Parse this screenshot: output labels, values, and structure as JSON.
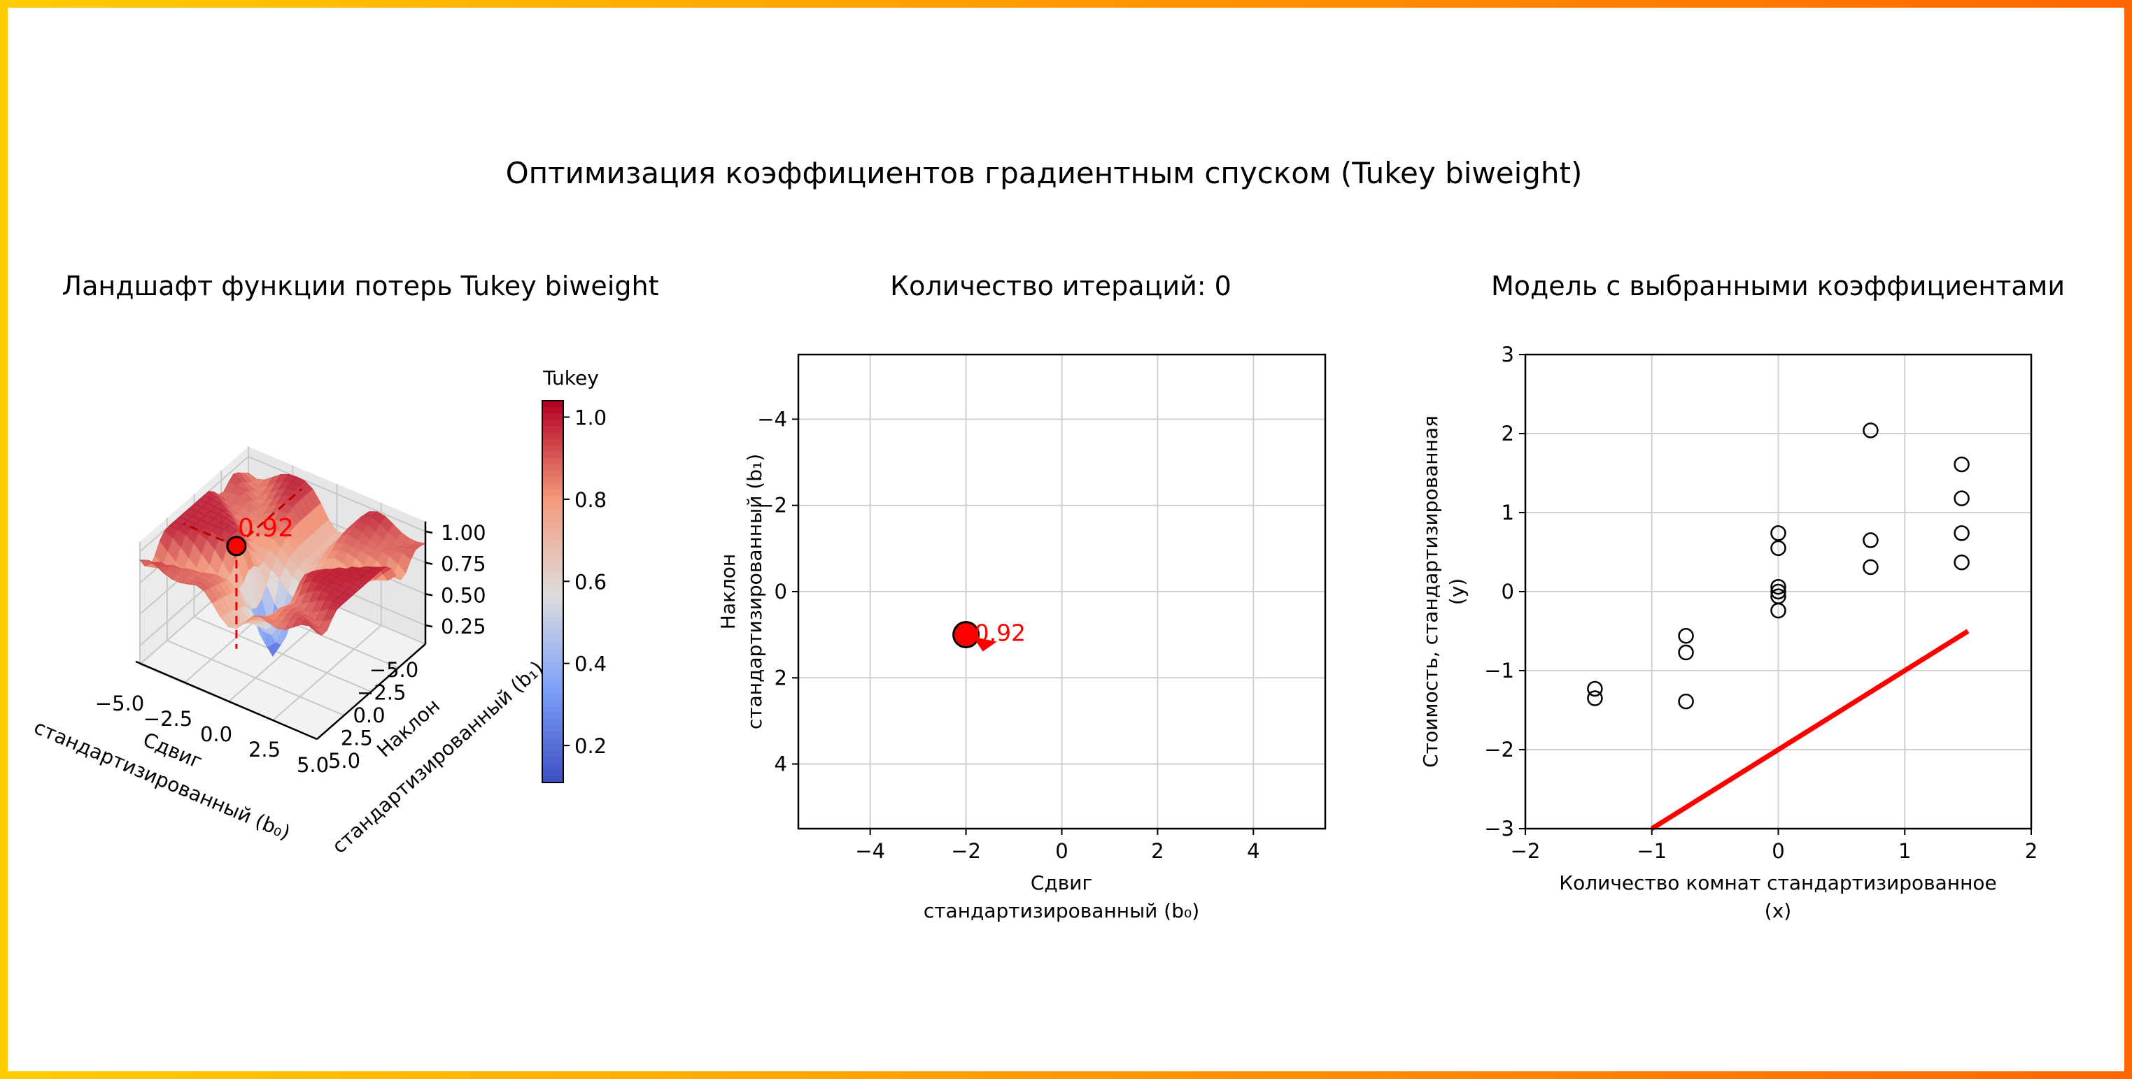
{
  "title": "Оптимизация коэффициентов градиентным спуском (Tukey biweight)",
  "colors": {
    "marker": "#ff0000",
    "marker_edge": "#000000",
    "line": "#ff0000",
    "colormap": "coolwarm",
    "border_left": "#ffcc00",
    "border_right": "#ff6600"
  },
  "chart_data": [
    {
      "type": "surface",
      "title": "Ландшафт функции потерь Tukey biweight",
      "xlabel_line1": "Сдвиг",
      "xlabel_line2": "стандартизированный (b₀)",
      "ylabel_line1": "Наклон",
      "ylabel_line2": "стандартизированный (b₁)",
      "xlim": [
        -5,
        5
      ],
      "ylim": [
        5,
        -5
      ],
      "xticks": [
        "−5.0",
        "−2.5",
        "0.0",
        "2.5",
        "5.0"
      ],
      "yticks": [
        "−5.0",
        "−2.5",
        "0.0",
        "2.5",
        "5.0"
      ],
      "zticks": [
        "0.25",
        "0.50",
        "0.75",
        "1.00"
      ],
      "colorbar": {
        "label": "Tukey",
        "range": [
          0.11,
          1.04
        ],
        "ticks": [
          "0.2",
          "0.4",
          "0.6",
          "0.8",
          "1.0"
        ]
      },
      "current_point": {
        "b0": -2,
        "b1": 1,
        "loss": 0.92,
        "label": "0.92"
      }
    },
    {
      "type": "scatter",
      "title": "Количество итераций: 0",
      "xlabel_line1": "Сдвиг",
      "xlabel_line2": "стандартизированный (b₀)",
      "ylabel_line1": "Наклон",
      "ylabel_line2": "стандартизированный (b₁)",
      "xlim": [
        -5.5,
        5.5
      ],
      "ylim": [
        5.5,
        -5.5
      ],
      "y_inverted": true,
      "grid": true,
      "xticks": [
        "−4",
        "−2",
        "0",
        "2",
        "4"
      ],
      "yticks": [
        "−4",
        "−2",
        "0",
        "2",
        "4"
      ],
      "points": [
        {
          "x": -2,
          "y": 1,
          "label": "0.92"
        }
      ]
    },
    {
      "type": "scatter",
      "title": "Модель с выбранными коэффициентами",
      "xlabel_line1": "Количество комнат стандартизированное",
      "xlabel_line2": "(x)",
      "ylabel_line1": "Стоимость, стандартизированная",
      "ylabel_line2": "(y)",
      "xlim": [
        -2,
        2
      ],
      "ylim": [
        -3,
        3
      ],
      "grid": true,
      "xticks": [
        "−2",
        "−1",
        "0",
        "1",
        "2"
      ],
      "yticks": [
        "−3",
        "−2",
        "−1",
        "0",
        "1",
        "2",
        "3"
      ],
      "points": [
        {
          "x": -1.45,
          "y": -1.23
        },
        {
          "x": -1.45,
          "y": -1.35
        },
        {
          "x": -0.73,
          "y": -0.56
        },
        {
          "x": -0.73,
          "y": -0.77
        },
        {
          "x": -0.73,
          "y": -1.39
        },
        {
          "x": 0,
          "y": 0.74
        },
        {
          "x": 0,
          "y": 0.55
        },
        {
          "x": 0,
          "y": 0.06
        },
        {
          "x": 0,
          "y": 0.0
        },
        {
          "x": 0,
          "y": -0.06
        },
        {
          "x": 0,
          "y": -0.24
        },
        {
          "x": 0.73,
          "y": 2.04
        },
        {
          "x": 0.73,
          "y": 0.65
        },
        {
          "x": 0.73,
          "y": 0.31
        },
        {
          "x": 1.45,
          "y": 1.61
        },
        {
          "x": 1.45,
          "y": 1.18
        },
        {
          "x": 1.45,
          "y": 0.74
        },
        {
          "x": 1.45,
          "y": 0.37
        }
      ],
      "line": {
        "intercept": -2,
        "slope": 1,
        "x_range": [
          -1,
          1.5
        ]
      }
    }
  ]
}
